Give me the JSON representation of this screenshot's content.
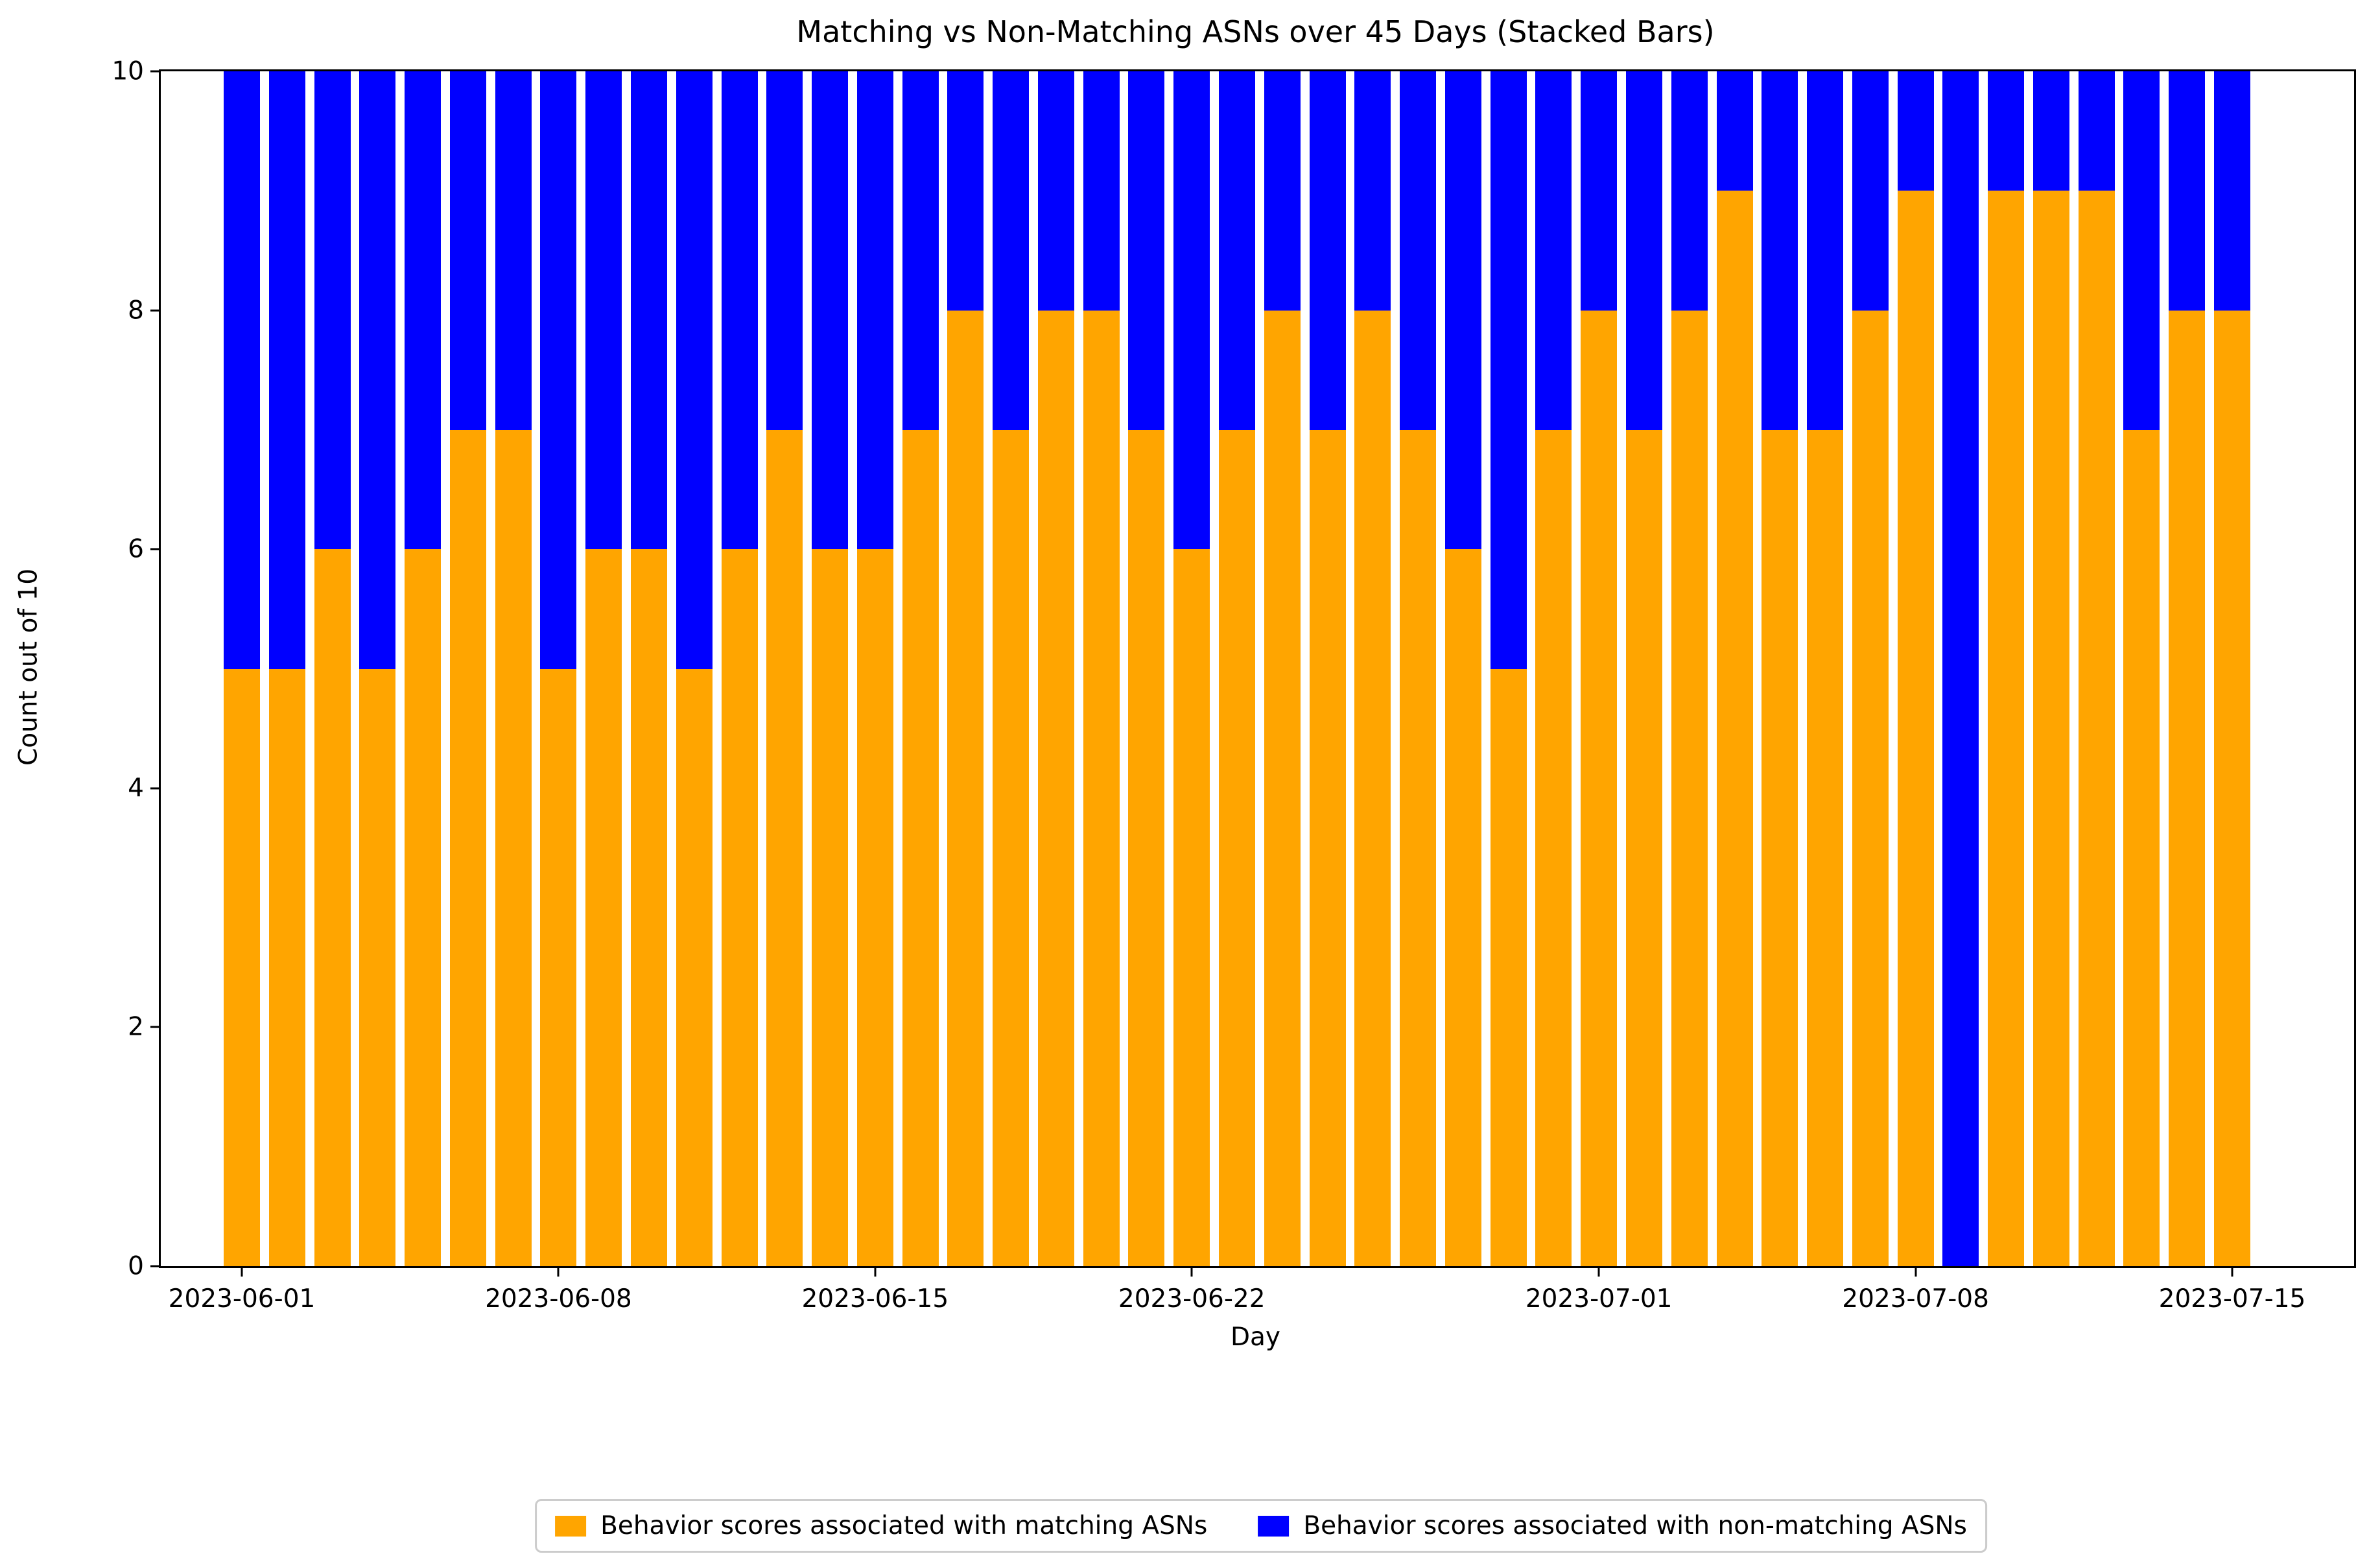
{
  "chart_data": {
    "type": "bar",
    "stacked": true,
    "title": "Matching vs Non-Matching ASNs over 45 Days (Stacked Bars)",
    "xlabel": "Day",
    "ylabel": "Count out of 10",
    "ylim": [
      0,
      10
    ],
    "yticks": [
      "0",
      "2",
      "4",
      "6",
      "8",
      "10"
    ],
    "grid": false,
    "legend_position": "bottom-center",
    "n_days": 45,
    "date_start": "2023-06-01",
    "date_end": "2023-07-15",
    "x_ticks": [
      {
        "day_index": 0,
        "label": "2023-06-01"
      },
      {
        "day_index": 7,
        "label": "2023-06-08"
      },
      {
        "day_index": 14,
        "label": "2023-06-15"
      },
      {
        "day_index": 21,
        "label": "2023-06-22"
      },
      {
        "day_index": 30,
        "label": "2023-07-01"
      },
      {
        "day_index": 37,
        "label": "2023-07-08"
      },
      {
        "day_index": 44,
        "label": "2023-07-15"
      }
    ],
    "series": [
      {
        "name": "Behavior scores associated with matching ASNs",
        "color": "#FFA500",
        "values": [
          5,
          5,
          6,
          5,
          6,
          7,
          7,
          5,
          6,
          6,
          5,
          6,
          7,
          6,
          6,
          7,
          8,
          7,
          8,
          8,
          7,
          6,
          7,
          8,
          7,
          8,
          7,
          6,
          5,
          7,
          8,
          7,
          8,
          9,
          7,
          7,
          8,
          9,
          0,
          9,
          9,
          9,
          7,
          8,
          8
        ]
      },
      {
        "name": "Behavior scores associated with non-matching ASNs",
        "color": "#0000FF",
        "values": [
          5,
          5,
          4,
          5,
          4,
          3,
          3,
          5,
          4,
          4,
          5,
          4,
          3,
          4,
          4,
          3,
          2,
          3,
          2,
          2,
          3,
          4,
          3,
          2,
          3,
          2,
          3,
          4,
          5,
          3,
          2,
          3,
          2,
          1,
          3,
          3,
          2,
          1,
          10,
          1,
          1,
          1,
          3,
          2,
          2
        ]
      }
    ],
    "colors": {
      "axis": "#000000",
      "background": "#ffffff",
      "legend_border": "#cccccc"
    }
  }
}
